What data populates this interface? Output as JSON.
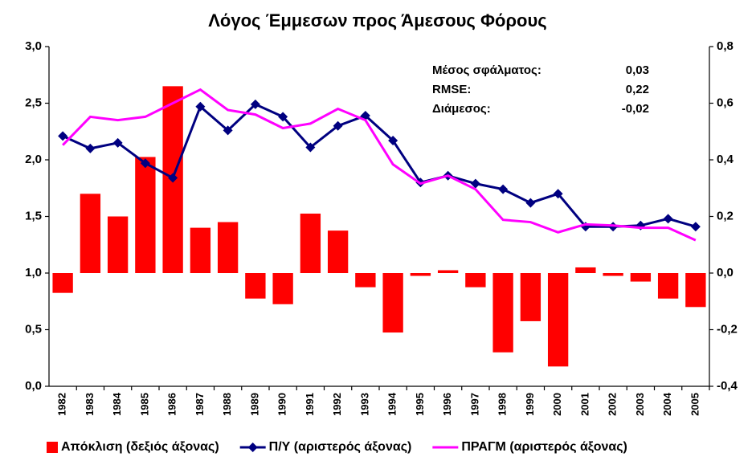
{
  "chart_data": {
    "type": "combo",
    "title": "Λόγος Έμμεσων προς Άμεσους Φόρους",
    "categories": [
      "1982",
      "1983",
      "1984",
      "1985",
      "1986",
      "1987",
      "1988",
      "1989",
      "1990",
      "1991",
      "1992",
      "1993",
      "1994",
      "1995",
      "1996",
      "1997",
      "1998",
      "1999",
      "2000",
      "2001",
      "2002",
      "2003",
      "2004",
      "2005"
    ],
    "series": [
      {
        "name": "Απόκλιση (δεξιός άξονας)",
        "type": "bar",
        "axis": "y2",
        "color": "#ff0000",
        "values": [
          -0.07,
          0.28,
          0.2,
          0.41,
          0.66,
          0.16,
          0.18,
          -0.09,
          -0.11,
          0.21,
          0.15,
          -0.05,
          -0.21,
          -0.01,
          0.01,
          -0.05,
          -0.28,
          -0.17,
          -0.33,
          0.02,
          -0.01,
          -0.03,
          -0.09,
          -0.12
        ]
      },
      {
        "name": "Π/Υ (αριστερός άξονας)",
        "type": "line",
        "marker": "diamond",
        "color": "#000080",
        "values": [
          2.21,
          2.1,
          2.15,
          1.97,
          1.84,
          2.47,
          2.26,
          2.49,
          2.38,
          2.11,
          2.3,
          2.39,
          2.17,
          1.8,
          1.86,
          1.79,
          1.74,
          1.62,
          1.7,
          1.41,
          1.41,
          1.42,
          1.48,
          1.41
        ]
      },
      {
        "name": "ΠΡΑΓΜ (αριστερός άξονας)",
        "type": "line",
        "color": "#ff00ff",
        "values": [
          2.13,
          2.38,
          2.35,
          2.38,
          2.5,
          2.62,
          2.44,
          2.4,
          2.28,
          2.32,
          2.45,
          2.35,
          1.96,
          1.79,
          1.86,
          1.74,
          1.47,
          1.45,
          1.36,
          1.43,
          1.42,
          1.4,
          1.4,
          1.29
        ]
      }
    ],
    "ylim": [
      0,
      3
    ],
    "yticks": [
      {
        "value": 0,
        "label": "0,0"
      },
      {
        "value": 0.5,
        "label": "0,5"
      },
      {
        "value": 1,
        "label": "1,0"
      },
      {
        "value": 1.5,
        "label": "1,5"
      },
      {
        "value": 2,
        "label": "2,0"
      },
      {
        "value": 2.5,
        "label": "2,5"
      },
      {
        "value": 3,
        "label": "3,0"
      }
    ],
    "y2lim": [
      -0.4,
      0.8
    ],
    "y2ticks": [
      {
        "value": -0.4,
        "label": "-0,4"
      },
      {
        "value": -0.2,
        "label": "-0,2"
      },
      {
        "value": 0,
        "label": "0,0"
      },
      {
        "value": 0.2,
        "label": "0,2"
      },
      {
        "value": 0.4,
        "label": "0,4"
      },
      {
        "value": 0.6,
        "label": "0,6"
      },
      {
        "value": 0.8,
        "label": "0,8"
      }
    ],
    "grid": false,
    "legend": "bottom",
    "annotations": [
      {
        "label": "Μέσος σφάλματος:",
        "value": "0,03"
      },
      {
        "label": "RMSE:",
        "value": "0,22"
      },
      {
        "label": "Διάμεσος:",
        "value": "-0,02"
      }
    ]
  }
}
